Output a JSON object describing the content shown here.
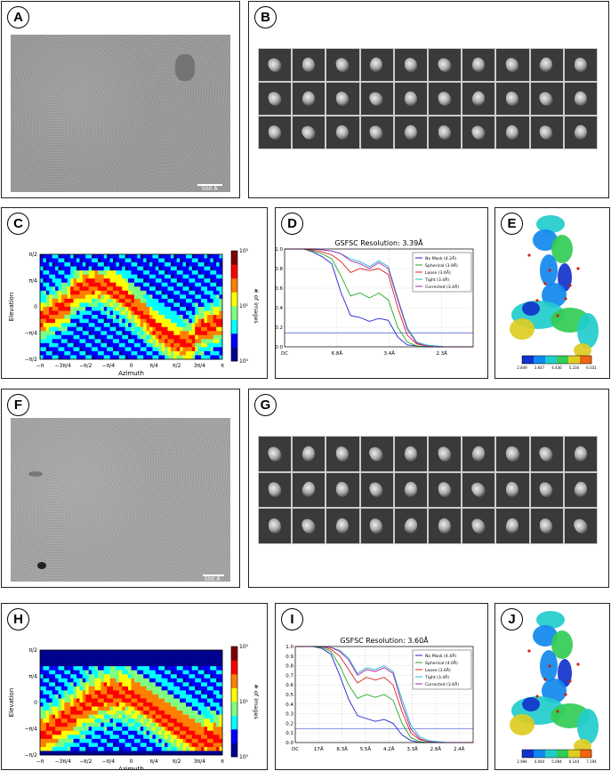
{
  "panels": {
    "A": {
      "label": "A",
      "scale_label": "500 Å"
    },
    "B": {
      "label": "B"
    },
    "C": {
      "label": "C"
    },
    "D": {
      "label": "D"
    },
    "E": {
      "label": "E"
    },
    "F": {
      "label": "F",
      "scale_label": "500 Å"
    },
    "G": {
      "label": "G"
    },
    "H": {
      "label": "H"
    },
    "I": {
      "label": "I"
    },
    "J": {
      "label": "J"
    }
  },
  "colorbar_E": {
    "ticks": [
      "2.849",
      "3.647",
      "4.436",
      "5.234",
      "6.031"
    ]
  },
  "colorbar_J": {
    "ticks": [
      "2.994",
      "4.044",
      "5.094",
      "6.144",
      "7.194"
    ]
  },
  "chart_data": [
    {
      "id": "C",
      "type": "heatmap",
      "title": "",
      "xlabel": "Azimuth",
      "ylabel": "Elevation",
      "x_ticks": [
        "−π",
        "−3π/4",
        "−π/2",
        "−π/4",
        "0",
        "π/4",
        "π/2",
        "3π/4",
        "π"
      ],
      "y_ticks": [
        "−π/2",
        "−π/4",
        "0",
        "π/4",
        "π/2"
      ],
      "colorbar_label": "# of images",
      "colorbar_ticks": [
        "10⁰",
        "10¹",
        "10²"
      ],
      "colormap": [
        "#00008f",
        "#0000ff",
        "#00ffff",
        "#7fff7f",
        "#ffff00",
        "#ff7f00",
        "#ff0000",
        "#7f0000"
      ]
    },
    {
      "id": "D",
      "type": "line",
      "title": "GSFSC Resolution: 3.39Å",
      "x_ticks": [
        "DC",
        "6.8Å",
        "3.4Å",
        "2.3Å"
      ],
      "y_ticks": [
        "0.0",
        "0.2",
        "0.4",
        "0.6",
        "0.8",
        "1.0"
      ],
      "ylim": [
        0,
        1
      ],
      "series": [
        {
          "name": "No Mask (4.2Å)",
          "color": "#2222cc",
          "y": [
            1,
            1,
            1,
            0.97,
            0.92,
            0.85,
            0.55,
            0.32,
            0.3,
            0.26,
            0.29,
            0.27,
            0.1,
            0.02,
            0.01,
            0,
            0,
            0,
            0,
            0,
            0
          ]
        },
        {
          "name": "Spherical (3.9Å)",
          "color": "#22aa22",
          "y": [
            1,
            1,
            1,
            0.98,
            0.95,
            0.9,
            0.72,
            0.52,
            0.55,
            0.5,
            0.55,
            0.48,
            0.2,
            0.05,
            0.01,
            0,
            0,
            0,
            0,
            0,
            0
          ]
        },
        {
          "name": "Loose (3.6Å)",
          "color": "#dd2222",
          "y": [
            1,
            1,
            1,
            0.99,
            0.97,
            0.94,
            0.87,
            0.76,
            0.8,
            0.78,
            0.8,
            0.74,
            0.4,
            0.12,
            0.03,
            0.01,
            0,
            0,
            0,
            0,
            0
          ]
        },
        {
          "name": "Tight (3.4Å)",
          "color": "#22bbcc",
          "y": [
            1,
            1,
            1,
            1,
            0.99,
            0.98,
            0.95,
            0.9,
            0.87,
            0.82,
            0.88,
            0.82,
            0.5,
            0.2,
            0.05,
            0.02,
            0.01,
            0,
            0,
            0,
            0
          ]
        },
        {
          "name": "Corrected (3.4Å)",
          "color": "#aa22aa",
          "y": [
            1,
            1,
            1,
            1,
            0.99,
            0.98,
            0.95,
            0.88,
            0.85,
            0.8,
            0.86,
            0.8,
            0.48,
            0.18,
            0.04,
            0.01,
            0,
            0,
            0,
            0,
            0
          ]
        }
      ]
    },
    {
      "id": "H",
      "type": "heatmap",
      "title": "",
      "xlabel": "Azimuth",
      "ylabel": "Elevation",
      "x_ticks": [
        "−π",
        "−3π/4",
        "−π/2",
        "−π/4",
        "0",
        "π/4",
        "π/2",
        "3π/4",
        "π"
      ],
      "y_ticks": [
        "−π/2",
        "−π/4",
        "0",
        "π/4",
        "π/2"
      ],
      "colorbar_label": "# of images",
      "colorbar_ticks": [
        "10⁰",
        "10¹",
        "10²"
      ],
      "colormap": [
        "#00008f",
        "#0000ff",
        "#00ffff",
        "#7fff7f",
        "#ffff00",
        "#ff7f00",
        "#ff0000",
        "#7f0000"
      ]
    },
    {
      "id": "I",
      "type": "line",
      "title": "GSFSC Resolution: 3.60Å",
      "x_ticks": [
        "DC",
        "17Å",
        "8.3Å",
        "5.5Å",
        "4.2Å",
        "3.3Å",
        "2.8Å",
        "2.4Å"
      ],
      "y_ticks": [
        "0.0",
        "0.1",
        "0.2",
        "0.3",
        "0.4",
        "0.5",
        "0.6",
        "0.7",
        "0.8",
        "0.9",
        "1.0"
      ],
      "ylim": [
        0,
        1
      ],
      "series": [
        {
          "name": "No Mask (4.4Å)",
          "color": "#2222cc",
          "y": [
            1,
            1,
            1,
            0.98,
            0.92,
            0.7,
            0.45,
            0.28,
            0.25,
            0.22,
            0.24,
            0.2,
            0.08,
            0.02,
            0,
            0,
            0,
            0,
            0,
            0,
            0
          ]
        },
        {
          "name": "Spherical (4.0Å)",
          "color": "#22aa22",
          "y": [
            1,
            1,
            1,
            0.99,
            0.95,
            0.8,
            0.6,
            0.46,
            0.5,
            0.47,
            0.5,
            0.44,
            0.2,
            0.05,
            0.01,
            0,
            0,
            0,
            0,
            0,
            0
          ]
        },
        {
          "name": "Loose (3.6Å)",
          "color": "#dd2222",
          "y": [
            1,
            1,
            1,
            1,
            0.97,
            0.9,
            0.76,
            0.62,
            0.68,
            0.65,
            0.68,
            0.6,
            0.32,
            0.1,
            0.03,
            0.01,
            0,
            0,
            0,
            0,
            0
          ]
        },
        {
          "name": "Tight (3.4Å)",
          "color": "#22bbcc",
          "y": [
            1,
            1,
            1,
            1,
            0.99,
            0.96,
            0.88,
            0.72,
            0.78,
            0.76,
            0.8,
            0.74,
            0.45,
            0.18,
            0.06,
            0.02,
            0.01,
            0,
            0,
            0,
            0
          ]
        },
        {
          "name": "Corrected (3.6Å)",
          "color": "#aa22aa",
          "y": [
            1,
            1,
            1,
            1,
            0.99,
            0.95,
            0.86,
            0.7,
            0.76,
            0.74,
            0.78,
            0.72,
            0.4,
            0.14,
            0.04,
            0.01,
            0,
            0,
            0,
            0,
            0
          ]
        }
      ]
    }
  ]
}
